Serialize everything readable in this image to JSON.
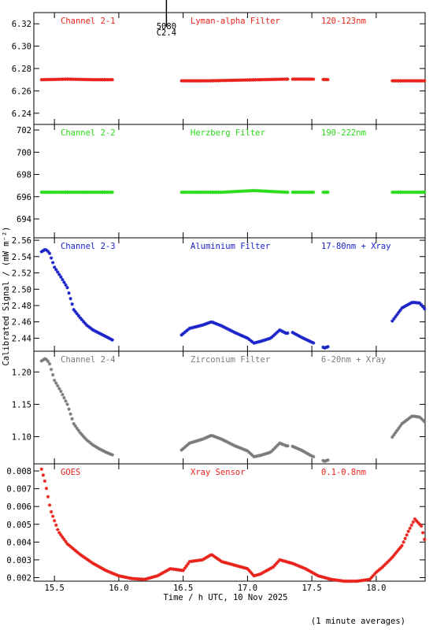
{
  "chart_data": [
    {
      "type": "scatter",
      "channel": "Channel 2-1",
      "filter": "Lyman-alpha Filter",
      "band": "120-123nm",
      "color": "#e8221a",
      "ylim": [
        6.23,
        6.33
      ],
      "yticks": [
        6.24,
        6.26,
        6.28,
        6.3,
        6.32
      ],
      "yticklabels": [
        "6.24",
        "6.26",
        "6.28",
        "6.30",
        "6.32"
      ],
      "markers": [
        {
          "x": 16.37,
          "label1": "5080",
          "label2": "C2.4"
        }
      ],
      "gaps": [
        [
          15.96,
          16.48
        ],
        [
          17.32,
          17.34
        ],
        [
          17.52,
          17.58
        ],
        [
          17.63,
          18.12
        ]
      ],
      "points": [
        [
          15.4,
          6.27
        ],
        [
          15.6,
          6.2705
        ],
        [
          15.8,
          6.27
        ],
        [
          15.96,
          6.27
        ],
        [
          16.48,
          6.269
        ],
        [
          16.7,
          6.269
        ],
        [
          16.9,
          6.2695
        ],
        [
          17.1,
          6.27
        ],
        [
          17.3,
          6.2705
        ],
        [
          17.5,
          6.2705
        ],
        [
          17.65,
          6.27
        ],
        [
          18.12,
          6.269
        ],
        [
          18.38,
          6.269
        ]
      ]
    },
    {
      "type": "scatter",
      "channel": "Channel 2-2",
      "filter": "Herzberg Filter",
      "band": "190-222nm",
      "color": "#2adc1a",
      "ylim": [
        692.3,
        702.5
      ],
      "yticks": [
        694,
        696,
        698,
        700,
        702
      ],
      "yticklabels": [
        "694",
        "696",
        "698",
        "700",
        "702"
      ],
      "gaps": [
        [
          15.96,
          16.48
        ],
        [
          17.32,
          17.34
        ],
        [
          17.52,
          17.58
        ],
        [
          17.63,
          18.12
        ]
      ],
      "points": [
        [
          15.4,
          696.4
        ],
        [
          15.7,
          696.4
        ],
        [
          15.96,
          696.4
        ],
        [
          16.48,
          696.4
        ],
        [
          16.8,
          696.4
        ],
        [
          17.05,
          696.55
        ],
        [
          17.3,
          696.4
        ],
        [
          17.5,
          696.4
        ],
        [
          17.62,
          696.4
        ],
        [
          18.12,
          696.4
        ],
        [
          18.38,
          696.4
        ]
      ]
    },
    {
      "type": "scatter",
      "channel": "Channel 2-3",
      "filter": "Aluminium Filter",
      "band": "17-80nm + Xray",
      "color": "#1a22c8",
      "ylim": [
        2.424,
        2.563
      ],
      "yticks": [
        2.44,
        2.46,
        2.48,
        2.5,
        2.52,
        2.54,
        2.56
      ],
      "yticklabels": [
        "2.44",
        "2.46",
        "2.48",
        "2.50",
        "2.52",
        "2.54",
        "2.56"
      ],
      "gaps": [
        [
          15.96,
          16.48
        ],
        [
          17.32,
          17.34
        ],
        [
          17.52,
          17.58
        ],
        [
          17.63,
          18.12
        ]
      ],
      "points": [
        [
          15.4,
          2.546
        ],
        [
          15.43,
          2.549
        ],
        [
          15.46,
          2.545
        ],
        [
          15.5,
          2.527
        ],
        [
          15.55,
          2.515
        ],
        [
          15.6,
          2.502
        ],
        [
          15.65,
          2.475
        ],
        [
          15.7,
          2.465
        ],
        [
          15.75,
          2.456
        ],
        [
          15.8,
          2.45
        ],
        [
          15.85,
          2.446
        ],
        [
          15.9,
          2.442
        ],
        [
          15.96,
          2.437
        ],
        [
          16.48,
          2.443
        ],
        [
          16.55,
          2.452
        ],
        [
          16.65,
          2.456
        ],
        [
          16.72,
          2.46
        ],
        [
          16.8,
          2.455
        ],
        [
          16.9,
          2.447
        ],
        [
          17.0,
          2.44
        ],
        [
          17.05,
          2.434
        ],
        [
          17.1,
          2.436
        ],
        [
          17.18,
          2.44
        ],
        [
          17.25,
          2.45
        ],
        [
          17.3,
          2.446
        ],
        [
          17.35,
          2.447
        ],
        [
          17.42,
          2.441
        ],
        [
          17.5,
          2.435
        ],
        [
          17.6,
          2.428
        ],
        [
          18.12,
          2.46
        ],
        [
          18.2,
          2.477
        ],
        [
          18.28,
          2.484
        ],
        [
          18.34,
          2.483
        ],
        [
          18.38,
          2.475
        ]
      ]
    },
    {
      "type": "scatter",
      "channel": "Channel 2-4",
      "filter": "Zirconium Filter",
      "band": "6-20nm + Xray",
      "color": "#7a7a7a",
      "ylim": [
        1.058,
        1.232
      ],
      "yticks": [
        1.1,
        1.15,
        1.2
      ],
      "yticklabels": [
        "1.10",
        "1.15",
        "1.20"
      ],
      "gaps": [
        [
          15.96,
          16.48
        ],
        [
          17.32,
          17.34
        ],
        [
          17.52,
          17.58
        ],
        [
          17.63,
          18.12
        ]
      ],
      "points": [
        [
          15.4,
          1.217
        ],
        [
          15.43,
          1.221
        ],
        [
          15.46,
          1.214
        ],
        [
          15.5,
          1.187
        ],
        [
          15.55,
          1.17
        ],
        [
          15.6,
          1.15
        ],
        [
          15.65,
          1.12
        ],
        [
          15.7,
          1.106
        ],
        [
          15.75,
          1.095
        ],
        [
          15.8,
          1.087
        ],
        [
          15.85,
          1.081
        ],
        [
          15.9,
          1.076
        ],
        [
          15.96,
          1.071
        ],
        [
          16.48,
          1.078
        ],
        [
          16.55,
          1.09
        ],
        [
          16.65,
          1.096
        ],
        [
          16.72,
          1.102
        ],
        [
          16.8,
          1.096
        ],
        [
          16.9,
          1.086
        ],
        [
          17.0,
          1.078
        ],
        [
          17.05,
          1.069
        ],
        [
          17.1,
          1.071
        ],
        [
          17.18,
          1.076
        ],
        [
          17.25,
          1.09
        ],
        [
          17.3,
          1.086
        ],
        [
          17.35,
          1.085
        ],
        [
          17.42,
          1.079
        ],
        [
          17.5,
          1.07
        ],
        [
          17.6,
          1.062
        ],
        [
          18.12,
          1.098
        ],
        [
          18.2,
          1.12
        ],
        [
          18.28,
          1.132
        ],
        [
          18.34,
          1.13
        ],
        [
          18.38,
          1.122
        ]
      ]
    },
    {
      "type": "scatter",
      "channel": "GOES",
      "filter": "Xray Sensor",
      "band": "0.1-0.8nm",
      "color": "#e8221a",
      "ylim": [
        0.0018,
        0.0084
      ],
      "yticks": [
        0.002,
        0.003,
        0.004,
        0.005,
        0.006,
        0.007,
        0.008
      ],
      "yticklabels": [
        "0.002",
        "0.003",
        "0.004",
        "0.005",
        "0.006",
        "0.007",
        "0.008"
      ],
      "gaps": [],
      "points": [
        [
          15.4,
          0.0081
        ],
        [
          15.43,
          0.0073
        ],
        [
          15.47,
          0.0058
        ],
        [
          15.53,
          0.0046
        ],
        [
          15.6,
          0.0039
        ],
        [
          15.7,
          0.0033
        ],
        [
          15.8,
          0.0028
        ],
        [
          15.9,
          0.0024
        ],
        [
          16.0,
          0.0021
        ],
        [
          16.1,
          0.00195
        ],
        [
          16.2,
          0.0019
        ],
        [
          16.3,
          0.0021
        ],
        [
          16.4,
          0.0025
        ],
        [
          16.5,
          0.0024
        ],
        [
          16.55,
          0.0029
        ],
        [
          16.65,
          0.003
        ],
        [
          16.72,
          0.0033
        ],
        [
          16.8,
          0.0029
        ],
        [
          16.9,
          0.0027
        ],
        [
          17.0,
          0.0025
        ],
        [
          17.05,
          0.0021
        ],
        [
          17.1,
          0.0022
        ],
        [
          17.2,
          0.0026
        ],
        [
          17.25,
          0.003
        ],
        [
          17.35,
          0.0028
        ],
        [
          17.45,
          0.0025
        ],
        [
          17.55,
          0.0021
        ],
        [
          17.65,
          0.0019
        ],
        [
          17.75,
          0.0018
        ],
        [
          17.85,
          0.0018
        ],
        [
          17.95,
          0.0019
        ],
        [
          18.0,
          0.0023
        ],
        [
          18.05,
          0.0026
        ],
        [
          18.12,
          0.0031
        ],
        [
          18.2,
          0.0038
        ],
        [
          18.25,
          0.0046
        ],
        [
          18.3,
          0.0053
        ],
        [
          18.35,
          0.0049
        ],
        [
          18.38,
          0.004
        ]
      ]
    }
  ],
  "axes": {
    "xlim": [
      15.34,
      18.38
    ],
    "xticks": [
      15.5,
      16.0,
      16.5,
      17.0,
      17.5,
      18.0
    ],
    "xticklabels": [
      "15.5",
      "16.0",
      "16.5",
      "17.0",
      "17.5",
      "18.0"
    ],
    "xlabel": "Time / h UTC, 10 Nov 2025",
    "ylabel": "Calibrated Signal / (mW m⁻²)"
  },
  "footnote": "(1 minute averages)"
}
